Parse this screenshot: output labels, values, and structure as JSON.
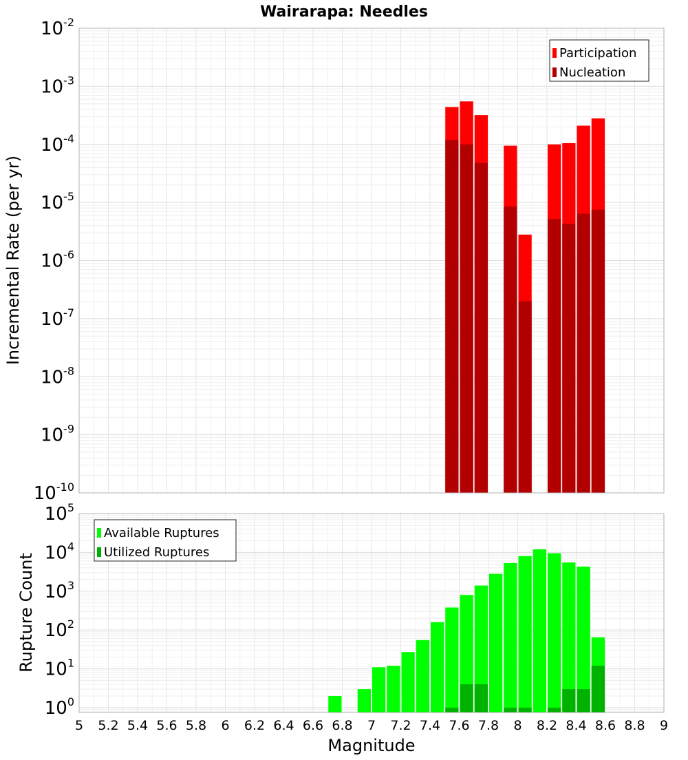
{
  "chart_data": [
    {
      "type": "bar",
      "title": "Wairarapa: Needles",
      "xlabel": "",
      "ylabel": "Incremental Rate (per yr)",
      "yscale": "log",
      "ylim": [
        1e-10,
        0.01
      ],
      "xlim": [
        5,
        9
      ],
      "grid": true,
      "legend_position": "top-right",
      "bar_width": 0.1,
      "colors": {
        "Participation": "#ff0000",
        "Nucleation": "#b20000"
      },
      "x": [
        7.55,
        7.65,
        7.75,
        7.95,
        8.05,
        8.25,
        8.35,
        8.45,
        8.55
      ],
      "series": [
        {
          "name": "Participation",
          "values": [
            0.00044,
            0.00055,
            0.00032,
            9.5e-05,
            2.8e-06,
            0.0001,
            0.000105,
            0.00021,
            0.00028
          ]
        },
        {
          "name": "Nucleation",
          "values": [
            0.00012,
            0.0001,
            4.8e-05,
            8.5e-06,
            2e-07,
            5.2e-06,
            4.3e-06,
            6.4e-06,
            7.5e-06
          ]
        }
      ],
      "y_tick_exponents": [
        "-10",
        "-9",
        "-8",
        "-7",
        "-6",
        "-5",
        "-4",
        "-3",
        "-2"
      ]
    },
    {
      "type": "bar",
      "title": "",
      "xlabel": "Magnitude",
      "ylabel": "Rupture Count",
      "yscale": "log",
      "ylim": [
        0.75,
        100000
      ],
      "xlim": [
        5,
        9
      ],
      "grid": true,
      "legend_position": "top-left",
      "bar_width": 0.1,
      "colors": {
        "Available Ruptures": "#00ff00",
        "Utilized Ruptures": "#00b200"
      },
      "x": [
        6.75,
        6.95,
        7.05,
        7.15,
        7.25,
        7.35,
        7.45,
        7.55,
        7.65,
        7.75,
        7.85,
        7.95,
        8.05,
        8.15,
        8.25,
        8.35,
        8.45,
        8.55
      ],
      "series": [
        {
          "name": "Available Ruptures",
          "values": [
            2,
            3,
            11,
            12,
            27,
            55,
            160,
            380,
            800,
            1400,
            2800,
            5300,
            8000,
            12000,
            9500,
            5500,
            4300,
            65
          ]
        },
        {
          "name": "Utilized Ruptures",
          "values": [
            0,
            0,
            0,
            0,
            0,
            0,
            0,
            1,
            4,
            4,
            0,
            1,
            1,
            0,
            1,
            3,
            3,
            12
          ]
        }
      ],
      "y_tick_exponents": [
        "0",
        "1",
        "2",
        "3",
        "4",
        "5"
      ],
      "x_ticks": [
        "5",
        "5.2",
        "5.4",
        "5.6",
        "5.8",
        "6",
        "6.2",
        "6.4",
        "6.6",
        "6.8",
        "7",
        "7.2",
        "7.4",
        "7.6",
        "7.8",
        "8",
        "8.2",
        "8.4",
        "8.6",
        "8.8",
        "9"
      ]
    }
  ]
}
